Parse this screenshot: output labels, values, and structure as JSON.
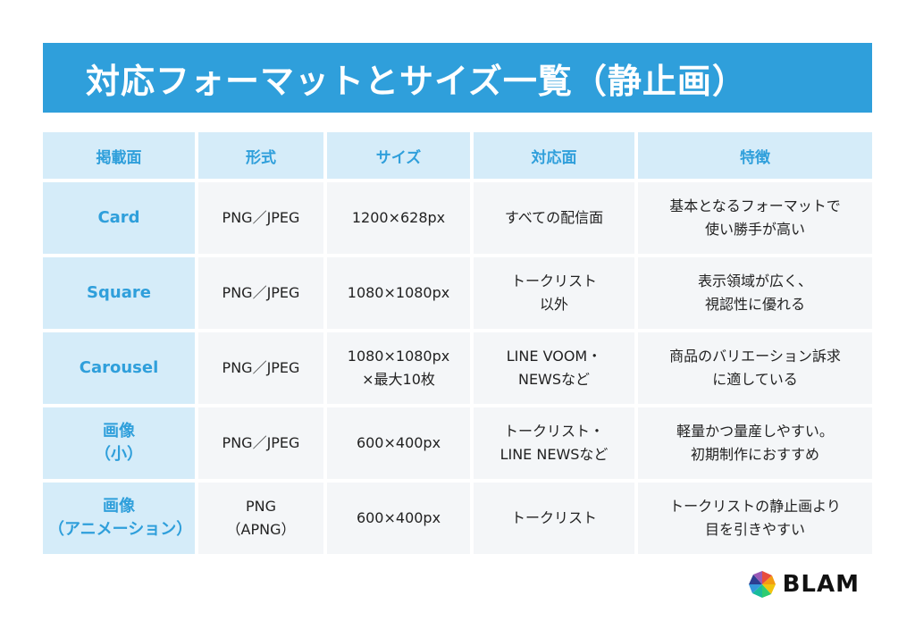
{
  "title": "対応フォーマットとサイズ一覧（静止画）",
  "table": {
    "headers": [
      "掲載面",
      "形式",
      "サイズ",
      "対応面",
      "特徴"
    ],
    "rows": [
      {
        "name": [
          "Card"
        ],
        "format": [
          "PNG／JPEG"
        ],
        "size": [
          "1200×628px"
        ],
        "surface": [
          "すべての配信面"
        ],
        "feature": [
          "基本となるフォーマットで",
          "使い勝手が高い"
        ]
      },
      {
        "name": [
          "Square"
        ],
        "format": [
          "PNG／JPEG"
        ],
        "size": [
          "1080×1080px"
        ],
        "surface": [
          "トークリスト",
          "以外"
        ],
        "feature": [
          "表示領域が広く、",
          "視認性に優れる"
        ]
      },
      {
        "name": [
          "Carousel"
        ],
        "format": [
          "PNG／JPEG"
        ],
        "size": [
          "1080×1080px",
          "×最大10枚"
        ],
        "surface": [
          "LINE VOOM・",
          "NEWSなど"
        ],
        "feature": [
          "商品のバリエーション訴求",
          "に適している"
        ]
      },
      {
        "name": [
          "画像",
          "（小）"
        ],
        "format": [
          "PNG／JPEG"
        ],
        "size": [
          "600×400px"
        ],
        "surface": [
          "トークリスト・",
          "LINE NEWSなど"
        ],
        "feature": [
          "軽量かつ量産しやすい。",
          "初期制作におすすめ"
        ]
      },
      {
        "name": [
          "画像",
          "（アニメーション）"
        ],
        "format": [
          "PNG",
          "（APNG）"
        ],
        "size": [
          "600×400px"
        ],
        "surface": [
          "トークリスト"
        ],
        "feature": [
          "トークリストの静止画より",
          "目を引きやすい"
        ]
      }
    ]
  },
  "logo": {
    "text": "BLAM",
    "icon": "blam-pinwheel-icon"
  },
  "colors": {
    "accent": "#2f9fdb",
    "header_bg": "#d5ecf9",
    "cell_bg": "#f4f6f8"
  }
}
